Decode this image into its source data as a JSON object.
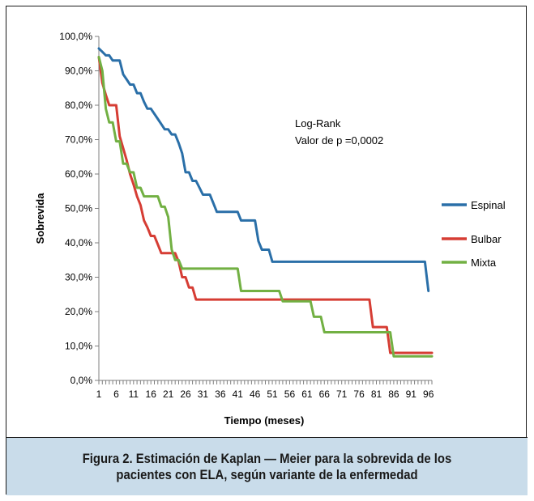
{
  "caption": "Figura 2. Estimación de Kaplan — Meier para la sobrevida de los pacientes con ELA, según variante de la enfermedad",
  "annotation": [
    "Log-Rank",
    "Valor de p =0,0002"
  ],
  "chart_data": {
    "type": "line",
    "title": "",
    "xlabel": "Tiempo (meses)",
    "ylabel": "Sobrevida",
    "xlim": [
      1,
      97
    ],
    "ylim": [
      0,
      100
    ],
    "x_ticks": [
      "1",
      "6",
      "11",
      "16",
      "21",
      "26",
      "31",
      "36",
      "41",
      "46",
      "51",
      "56",
      "61",
      "66",
      "71",
      "76",
      "81",
      "86",
      "91",
      "96"
    ],
    "y_ticks": [
      "0,0%",
      "10,0%",
      "20,0%",
      "30,0%",
      "40,0%",
      "50,0%",
      "60,0%",
      "70,0%",
      "80,0%",
      "90,0%",
      "100,0%"
    ],
    "legend_position": "right",
    "series": [
      {
        "name": "Espinal",
        "color": "#2a6fa8",
        "points": [
          [
            1,
            96.5
          ],
          [
            2,
            95.5
          ],
          [
            3,
            94.5
          ],
          [
            4,
            94.5
          ],
          [
            5,
            93
          ],
          [
            6,
            93
          ],
          [
            7,
            93
          ],
          [
            8,
            89
          ],
          [
            9,
            87.5
          ],
          [
            10,
            86
          ],
          [
            11,
            86
          ],
          [
            12,
            83.5
          ],
          [
            13,
            83.5
          ],
          [
            14,
            81
          ],
          [
            15,
            79
          ],
          [
            16,
            79
          ],
          [
            17,
            77.5
          ],
          [
            18,
            76
          ],
          [
            19,
            74.5
          ],
          [
            20,
            73
          ],
          [
            21,
            73
          ],
          [
            22,
            71.5
          ],
          [
            23,
            71.5
          ],
          [
            24,
            69
          ],
          [
            25,
            66
          ],
          [
            26,
            60.5
          ],
          [
            27,
            60.5
          ],
          [
            28,
            58
          ],
          [
            29,
            58
          ],
          [
            30,
            56
          ],
          [
            31,
            54
          ],
          [
            32,
            54
          ],
          [
            33,
            54
          ],
          [
            34,
            51.5
          ],
          [
            35,
            49
          ],
          [
            36,
            49
          ],
          [
            37,
            49
          ],
          [
            38,
            49
          ],
          [
            39,
            49
          ],
          [
            40,
            49
          ],
          [
            41,
            49
          ],
          [
            42,
            46.5
          ],
          [
            43,
            46.5
          ],
          [
            44,
            46.5
          ],
          [
            45,
            46.5
          ],
          [
            46,
            46.5
          ],
          [
            47,
            40.5
          ],
          [
            48,
            38
          ],
          [
            49,
            38
          ],
          [
            50,
            38
          ],
          [
            51,
            34.5
          ],
          [
            52,
            34.5
          ],
          [
            93,
            34.5
          ],
          [
            94,
            34.5
          ],
          [
            95,
            34.5
          ],
          [
            96,
            26
          ]
        ]
      },
      {
        "name": "Bulbar",
        "color": "#d63d34",
        "points": [
          [
            1,
            94
          ],
          [
            2,
            86.5
          ],
          [
            3,
            83
          ],
          [
            4,
            80
          ],
          [
            5,
            80
          ],
          [
            6,
            80
          ],
          [
            7,
            71
          ],
          [
            8,
            67.5
          ],
          [
            9,
            64
          ],
          [
            10,
            60
          ],
          [
            11,
            57
          ],
          [
            12,
            53.5
          ],
          [
            13,
            51
          ],
          [
            14,
            46.5
          ],
          [
            15,
            44.5
          ],
          [
            16,
            42
          ],
          [
            17,
            42
          ],
          [
            18,
            39.5
          ],
          [
            19,
            37
          ],
          [
            20,
            37
          ],
          [
            21,
            37
          ],
          [
            22,
            37
          ],
          [
            23,
            37
          ],
          [
            24,
            34.5
          ],
          [
            25,
            30
          ],
          [
            26,
            30
          ],
          [
            27,
            27
          ],
          [
            28,
            27
          ],
          [
            29,
            23.5
          ],
          [
            30,
            23.5
          ],
          [
            79,
            23.5
          ],
          [
            80,
            15.5
          ],
          [
            81,
            15.5
          ],
          [
            82,
            15.5
          ],
          [
            83,
            15.5
          ],
          [
            84,
            15.5
          ],
          [
            85,
            8
          ],
          [
            86,
            8
          ],
          [
            97,
            8
          ]
        ]
      },
      {
        "name": "Mixta",
        "color": "#72b043",
        "points": [
          [
            1,
            94
          ],
          [
            2,
            90
          ],
          [
            3,
            79
          ],
          [
            4,
            75
          ],
          [
            5,
            75
          ],
          [
            6,
            69.5
          ],
          [
            7,
            69.5
          ],
          [
            8,
            63
          ],
          [
            9,
            63
          ],
          [
            10,
            60.5
          ],
          [
            11,
            60.5
          ],
          [
            12,
            56
          ],
          [
            13,
            56
          ],
          [
            14,
            53.5
          ],
          [
            15,
            53.5
          ],
          [
            16,
            53.5
          ],
          [
            17,
            53.5
          ],
          [
            18,
            53.5
          ],
          [
            19,
            50.5
          ],
          [
            20,
            50.5
          ],
          [
            21,
            47.5
          ],
          [
            22,
            38
          ],
          [
            23,
            35
          ],
          [
            24,
            35
          ],
          [
            25,
            32.5
          ],
          [
            26,
            32.5
          ],
          [
            27,
            32.5
          ],
          [
            41,
            32.5
          ],
          [
            42,
            26
          ],
          [
            43,
            26
          ],
          [
            53,
            26
          ],
          [
            54,
            23
          ],
          [
            55,
            23
          ],
          [
            62,
            23
          ],
          [
            63,
            18.5
          ],
          [
            64,
            18.5
          ],
          [
            65,
            18.5
          ],
          [
            66,
            14
          ],
          [
            67,
            14
          ],
          [
            85,
            14
          ],
          [
            86,
            7
          ],
          [
            97,
            7
          ]
        ]
      }
    ]
  }
}
